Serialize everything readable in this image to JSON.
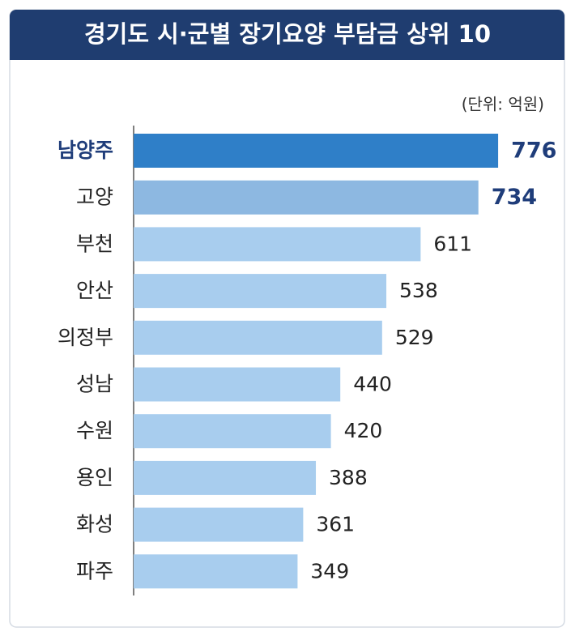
{
  "chart_data": {
    "type": "bar",
    "orientation": "horizontal",
    "title": "경기도 시·군별 장기요양 부담금 상위 10",
    "unit_label": "(단위: 억원)",
    "categories": [
      "남양주",
      "고양",
      "부천",
      "안산",
      "의정부",
      "성남",
      "수원",
      "용인",
      "화성",
      "파주"
    ],
    "values": [
      776,
      734,
      611,
      538,
      529,
      440,
      420,
      388,
      361,
      349
    ],
    "colors": [
      "#2f7fc8",
      "#8db8e1",
      "#a8cdee",
      "#a8cdee",
      "#a8cdee",
      "#a8cdee",
      "#a8cdee",
      "#a8cdee",
      "#a8cdee",
      "#a8cdee"
    ],
    "highlight": [
      true,
      true,
      false,
      false,
      false,
      false,
      false,
      false,
      false,
      false
    ]
  }
}
